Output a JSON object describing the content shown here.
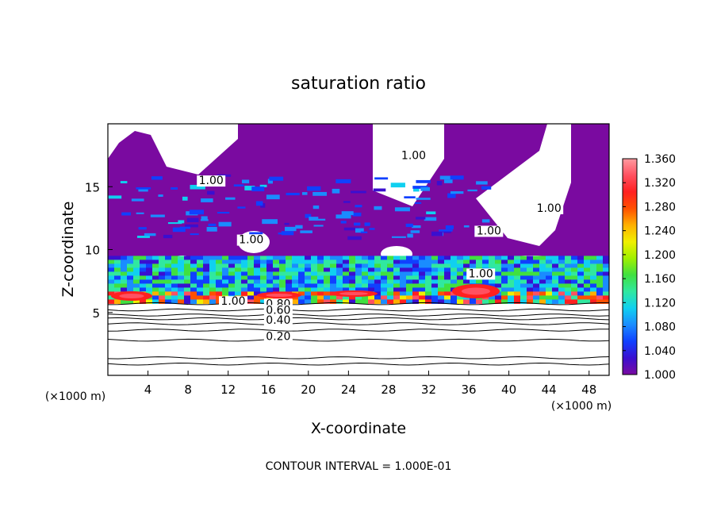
{
  "chart_data": {
    "type": "heatmap",
    "title": "saturation ratio",
    "xlabel": "X-coordinate",
    "ylabel": "Z-coordinate",
    "x_unit": "(×1000 m)",
    "x_unit_right": "(×1000 m)",
    "footer": "CONTOUR INTERVAL = 1.000E-01",
    "xlim": [
      0,
      50
    ],
    "ylim": [
      0,
      20
    ],
    "x_ticks": [
      4,
      8,
      12,
      16,
      20,
      24,
      28,
      32,
      36,
      40,
      44,
      48
    ],
    "y_ticks": [
      5,
      10,
      15
    ],
    "colorbar": {
      "min": 1.0,
      "max": 1.36,
      "tick_labels": [
        "1.360",
        "1.320",
        "1.280",
        "1.240",
        "1.200",
        "1.160",
        "1.120",
        "1.080",
        "1.040",
        "1.000"
      ],
      "colors": [
        "#7a0aa0",
        "#3a0fd0",
        "#1040ff",
        "#1a8cff",
        "#10d0f0",
        "#30e8a0",
        "#40e040",
        "#a0f000",
        "#f0f000",
        "#ffb000",
        "#ff5000",
        "#ff2020",
        "#ff5060",
        "#ff9aa0"
      ]
    },
    "contour_labels": [
      {
        "text": "1.00",
        "x": 10.3,
        "z": 15.2
      },
      {
        "text": "1.00",
        "x": 30.5,
        "z": 17.2
      },
      {
        "text": "1.00",
        "x": 44.0,
        "z": 13.0
      },
      {
        "text": "1.00",
        "x": 14.3,
        "z": 10.5
      },
      {
        "text": "1.00",
        "x": 38.0,
        "z": 11.2
      },
      {
        "text": "1.00",
        "x": 37.2,
        "z": 7.8
      },
      {
        "text": "1.00",
        "x": 12.5,
        "z": 5.6
      },
      {
        "text": "0.80",
        "x": 17.0,
        "z": 5.4
      },
      {
        "text": "0.60",
        "x": 17.0,
        "z": 4.9
      },
      {
        "text": "0.40",
        "x": 17.0,
        "z": 4.1
      },
      {
        "text": "0.20",
        "x": 17.0,
        "z": 2.8
      }
    ],
    "subsaturated_contours_z": [
      5.7,
      5.2,
      4.8,
      4.5,
      4.1,
      3.6,
      2.8,
      1.4,
      0.9
    ]
  }
}
